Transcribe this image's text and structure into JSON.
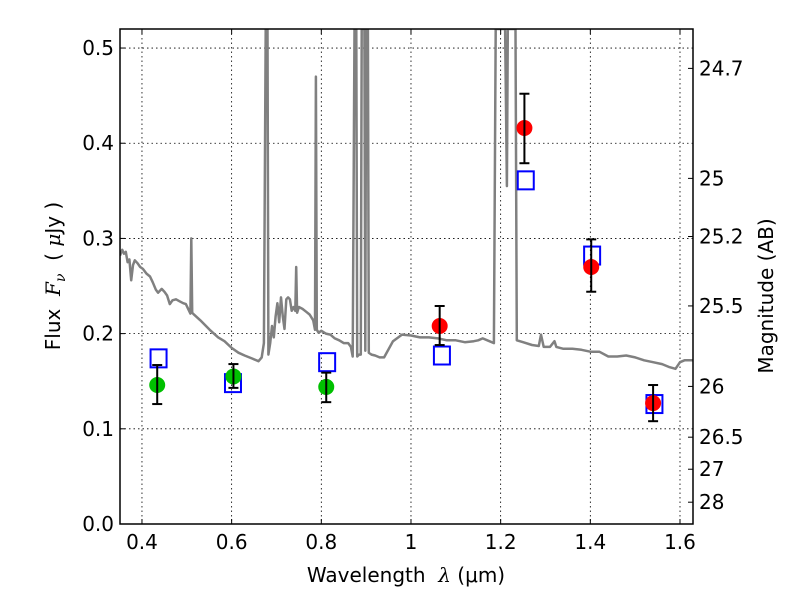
{
  "chart_data": {
    "type": "scatter",
    "title": "",
    "xlabel": "Wavelength  λ (μm)",
    "xlabel_parts": {
      "prefix": "Wavelength  ",
      "symbol": "λ",
      "suffix": " (μm)"
    },
    "ylabel": "Flux  Fν  ( μJy )",
    "ylabel_parts": {
      "prefix": "Flux  ",
      "symbol": "F",
      "sub": "ν",
      "mid": "  ( ",
      "unit_sym": "μ",
      "unit": "Jy )"
    },
    "y2label": "Magnitude (AB)",
    "xlim": [
      0.351,
      1.629
    ],
    "ylim": [
      0.0,
      0.52
    ],
    "grid": true,
    "xticks": [
      0.4,
      0.6,
      0.8,
      1.0,
      1.2,
      1.4,
      1.6
    ],
    "xtick_labels": [
      "0.4",
      "0.6",
      "0.8",
      "1",
      "1.2",
      "1.4",
      "1.6"
    ],
    "yticks": [
      0.0,
      0.1,
      0.2,
      0.3,
      0.4,
      0.5
    ],
    "ytick_labels": [
      "0.0",
      "0.1",
      "0.2",
      "0.3",
      "0.4",
      "0.5"
    ],
    "y2_ab_zeropoint": 23.9,
    "y2ticks": [
      24.7,
      25,
      25.2,
      25.5,
      26,
      26.5,
      27,
      28
    ],
    "y2tick_labels": [
      "24.7",
      "25",
      "25.2",
      "25.5",
      "26",
      "26.5",
      "27",
      "28"
    ],
    "colors": {
      "spectrum": "#808080",
      "model_squares": "#0000ff",
      "detections": "#ff0000",
      "upper_limits_green": "#00c000",
      "errorbar": "#000000",
      "grid": "#000000"
    },
    "series": [
      {
        "name": "model spectrum",
        "kind": "line",
        "points": [
          [
            0.351,
            0.282
          ],
          [
            0.356,
            0.288
          ],
          [
            0.36,
            0.284
          ],
          [
            0.364,
            0.286
          ],
          [
            0.368,
            0.275
          ],
          [
            0.372,
            0.278
          ],
          [
            0.376,
            0.256
          ],
          [
            0.38,
            0.272
          ],
          [
            0.384,
            0.277
          ],
          [
            0.39,
            0.274
          ],
          [
            0.396,
            0.27
          ],
          [
            0.402,
            0.268
          ],
          [
            0.41,
            0.263
          ],
          [
            0.418,
            0.26
          ],
          [
            0.424,
            0.254
          ],
          [
            0.431,
            0.246
          ],
          [
            0.436,
            0.243
          ],
          [
            0.444,
            0.247
          ],
          [
            0.45,
            0.244
          ],
          [
            0.456,
            0.24
          ],
          [
            0.462,
            0.231
          ],
          [
            0.468,
            0.235
          ],
          [
            0.476,
            0.236
          ],
          [
            0.484,
            0.234
          ],
          [
            0.492,
            0.232
          ],
          [
            0.498,
            0.231
          ],
          [
            0.504,
            0.225
          ],
          [
            0.508,
            0.221
          ],
          [
            0.51,
            0.3
          ],
          [
            0.512,
            0.222
          ],
          [
            0.516,
            0.22
          ],
          [
            0.53,
            0.214
          ],
          [
            0.551,
            0.204
          ],
          [
            0.57,
            0.196
          ],
          [
            0.584,
            0.192
          ],
          [
            0.6,
            0.185
          ],
          [
            0.615,
            0.18
          ],
          [
            0.629,
            0.177
          ],
          [
            0.645,
            0.174
          ],
          [
            0.66,
            0.171
          ],
          [
            0.667,
            0.175
          ],
          [
            0.672,
            0.19
          ],
          [
            0.676,
            0.52
          ],
          [
            0.68,
            0.52
          ],
          [
            0.682,
            0.178
          ],
          [
            0.686,
            0.19
          ],
          [
            0.69,
            0.208
          ],
          [
            0.694,
            0.196
          ],
          [
            0.698,
            0.218
          ],
          [
            0.702,
            0.232
          ],
          [
            0.706,
            0.212
          ],
          [
            0.71,
            0.238
          ],
          [
            0.714,
            0.218
          ],
          [
            0.718,
            0.205
          ],
          [
            0.722,
            0.236
          ],
          [
            0.726,
            0.238
          ],
          [
            0.73,
            0.236
          ],
          [
            0.734,
            0.224
          ],
          [
            0.738,
            0.228
          ],
          [
            0.742,
            0.224
          ],
          [
            0.744,
            0.27
          ],
          [
            0.746,
            0.222
          ],
          [
            0.75,
            0.228
          ],
          [
            0.758,
            0.226
          ],
          [
            0.766,
            0.223
          ],
          [
            0.774,
            0.22
          ],
          [
            0.782,
            0.214
          ],
          [
            0.786,
            0.204
          ],
          [
            0.788,
            0.47
          ],
          [
            0.79,
            0.204
          ],
          [
            0.794,
            0.201
          ],
          [
            0.8,
            0.203
          ],
          [
            0.81,
            0.2
          ],
          [
            0.82,
            0.199
          ],
          [
            0.83,
            0.195
          ],
          [
            0.84,
            0.193
          ],
          [
            0.85,
            0.19
          ],
          [
            0.86,
            0.19
          ],
          [
            0.866,
            0.186
          ],
          [
            0.87,
            0.176
          ],
          [
            0.874,
            0.52
          ],
          [
            0.878,
            0.52
          ],
          [
            0.88,
            0.176
          ],
          [
            0.884,
            0.178
          ],
          [
            0.888,
            0.178
          ],
          [
            0.89,
            0.52
          ],
          [
            0.896,
            0.52
          ],
          [
            0.898,
            0.182
          ],
          [
            0.9,
            0.52
          ],
          [
            0.904,
            0.52
          ],
          [
            0.906,
            0.18
          ],
          [
            0.912,
            0.178
          ],
          [
            0.92,
            0.177
          ],
          [
            0.93,
            0.175
          ],
          [
            0.94,
            0.175
          ],
          [
            0.96,
            0.192
          ],
          [
            0.98,
            0.199
          ],
          [
            1.0,
            0.198
          ],
          [
            1.02,
            0.196
          ],
          [
            1.04,
            0.196
          ],
          [
            1.06,
            0.195
          ],
          [
            1.08,
            0.193
          ],
          [
            1.1,
            0.193
          ],
          [
            1.12,
            0.191
          ],
          [
            1.14,
            0.192
          ],
          [
            1.15,
            0.193
          ],
          [
            1.16,
            0.195
          ],
          [
            1.175,
            0.192
          ],
          [
            1.185,
            0.19
          ],
          [
            1.189,
            0.52
          ],
          [
            1.196,
            0.52
          ],
          [
            1.2,
            0.52
          ],
          [
            1.205,
            0.52
          ],
          [
            1.21,
            0.52
          ],
          [
            1.214,
            0.355
          ],
          [
            1.216,
            0.52
          ],
          [
            1.22,
            0.52
          ],
          [
            1.233,
            0.52
          ],
          [
            1.236,
            0.193
          ],
          [
            1.25,
            0.191
          ],
          [
            1.27,
            0.188
          ],
          [
            1.285,
            0.187
          ],
          [
            1.29,
            0.199
          ],
          [
            1.296,
            0.186
          ],
          [
            1.31,
            0.186
          ],
          [
            1.32,
            0.192
          ],
          [
            1.324,
            0.186
          ],
          [
            1.34,
            0.184
          ],
          [
            1.36,
            0.184
          ],
          [
            1.38,
            0.183
          ],
          [
            1.4,
            0.181
          ],
          [
            1.42,
            0.181
          ],
          [
            1.44,
            0.176
          ],
          [
            1.46,
            0.176
          ],
          [
            1.48,
            0.177
          ],
          [
            1.5,
            0.175
          ],
          [
            1.52,
            0.172
          ],
          [
            1.54,
            0.17
          ],
          [
            1.56,
            0.168
          ],
          [
            1.575,
            0.165
          ],
          [
            1.59,
            0.163
          ],
          [
            1.6,
            0.17
          ],
          [
            1.61,
            0.172
          ],
          [
            1.62,
            0.172
          ],
          [
            1.629,
            0.172
          ]
        ]
      },
      {
        "name": "model photometry",
        "kind": "square-open",
        "points": [
          [
            0.437,
            0.174
          ],
          [
            0.603,
            0.148
          ],
          [
            0.813,
            0.17
          ],
          [
            1.069,
            0.177
          ],
          [
            1.256,
            0.361
          ],
          [
            1.404,
            0.282
          ],
          [
            1.543,
            0.126
          ]
        ]
      },
      {
        "name": "observed (green)",
        "kind": "circle",
        "points": [
          {
            "x": 0.434,
            "y": 0.146,
            "ylo": 0.126,
            "yhi": 0.167
          },
          {
            "x": 0.604,
            "y": 0.155,
            "ylo": 0.143,
            "yhi": 0.168
          },
          {
            "x": 0.811,
            "y": 0.144,
            "ylo": 0.128,
            "yhi": 0.159
          }
        ]
      },
      {
        "name": "observed (red)",
        "kind": "circle",
        "points": [
          {
            "x": 1.064,
            "y": 0.208,
            "ylo": 0.188,
            "yhi": 0.229
          },
          {
            "x": 1.253,
            "y": 0.416,
            "ylo": 0.379,
            "yhi": 0.452
          },
          {
            "x": 1.402,
            "y": 0.27,
            "ylo": 0.244,
            "yhi": 0.299
          },
          {
            "x": 1.54,
            "y": 0.127,
            "ylo": 0.108,
            "yhi": 0.146
          }
        ]
      }
    ]
  }
}
